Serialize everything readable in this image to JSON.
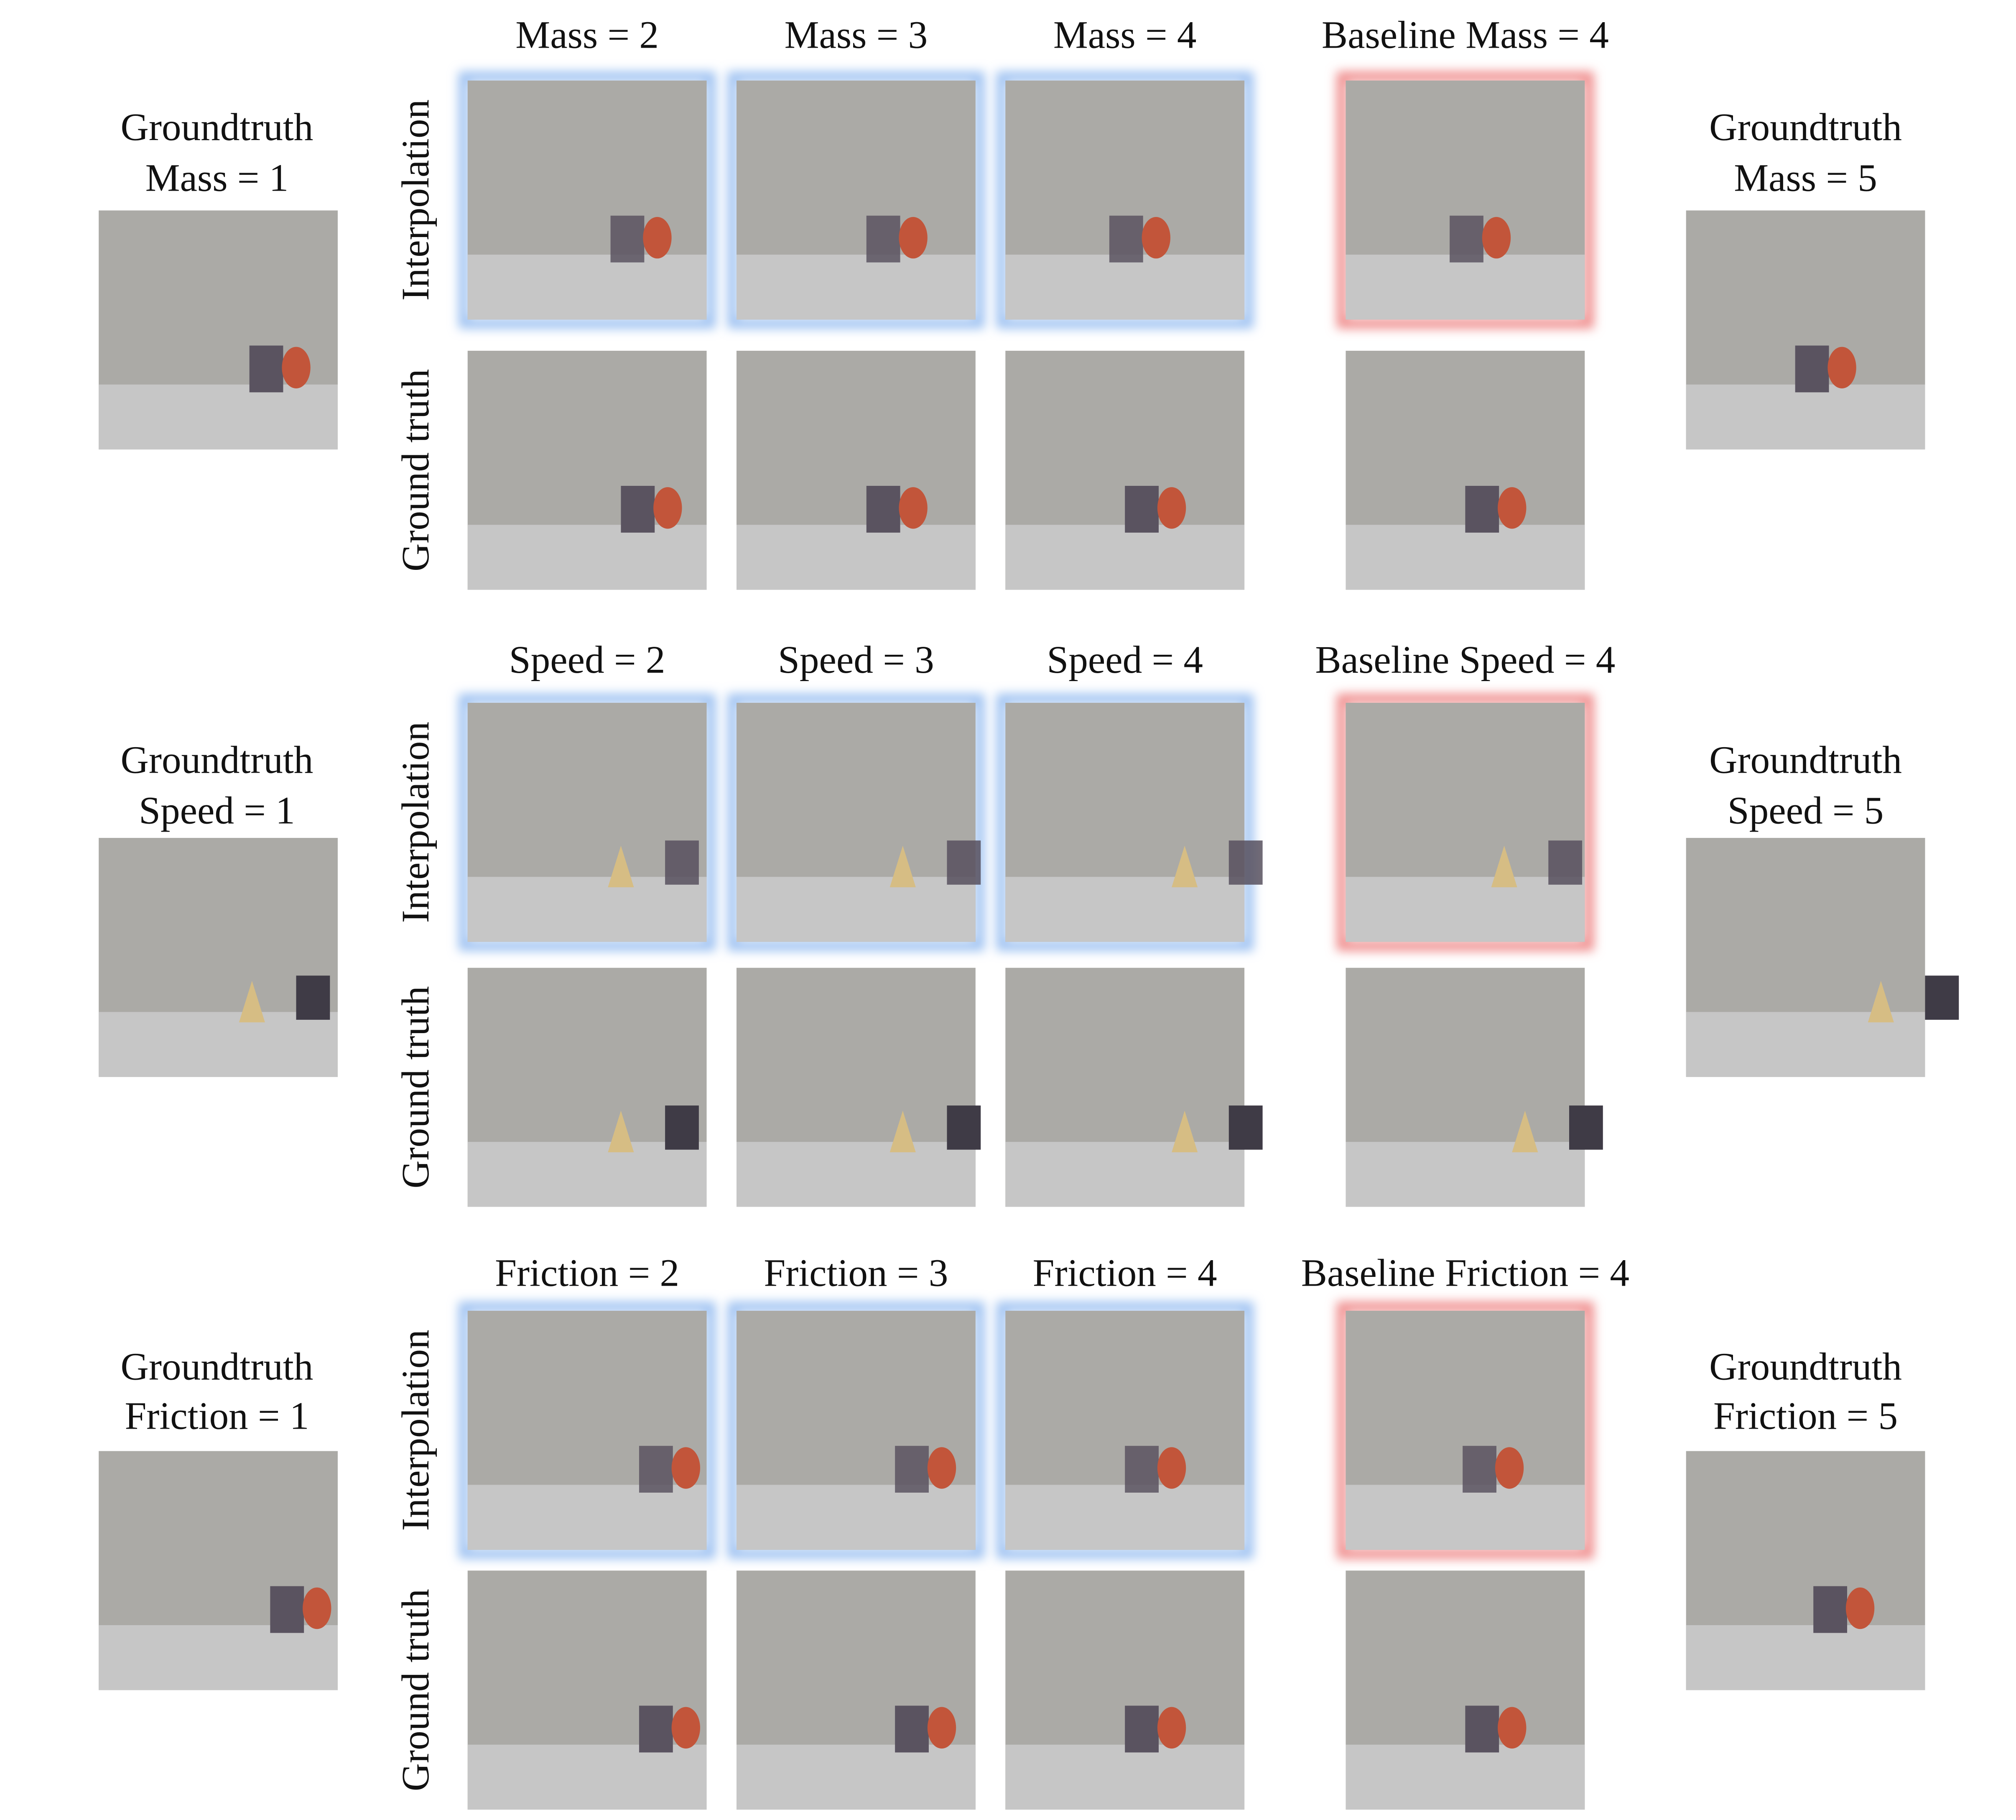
{
  "sections": [
    {
      "columns": [
        "Mass = 2",
        "Mass = 3",
        "Mass = 4",
        "Baseline Mass = 4"
      ],
      "rows": [
        "Interpolation",
        "Ground truth"
      ],
      "left": [
        "Groundtruth",
        "Mass = 1"
      ],
      "right": [
        "Groundtruth",
        "Mass = 5"
      ]
    },
    {
      "columns": [
        "Speed = 2",
        "Speed = 3",
        "Speed = 4",
        "Baseline Speed = 4"
      ],
      "rows": [
        "Interpolation",
        "Ground truth"
      ],
      "left": [
        "Groundtruth",
        "Speed = 1"
      ],
      "right": [
        "Groundtruth",
        "Speed = 5"
      ]
    },
    {
      "columns": [
        "Friction = 2",
        "Friction = 3",
        "Friction = 4",
        "Baseline Friction = 4"
      ],
      "rows": [
        "Interpolation",
        "Ground truth"
      ],
      "left": [
        "Groundtruth",
        "Friction = 1"
      ],
      "right": [
        "Groundtruth",
        "Friction = 5"
      ]
    }
  ]
}
